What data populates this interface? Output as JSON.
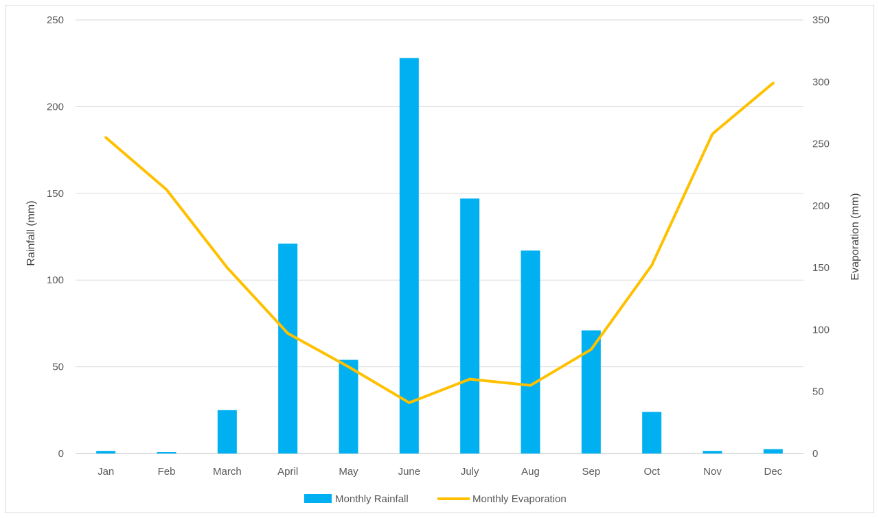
{
  "chart_data": {
    "type": "bar",
    "categories": [
      "Jan",
      "Feb",
      "March",
      "April",
      "May",
      "June",
      "July",
      "Aug",
      "Sep",
      "Oct",
      "Nov",
      "Dec"
    ],
    "series": [
      {
        "name": "Monthly Rainfall",
        "type": "bar",
        "axis": "left",
        "color": "#00b0f0",
        "values": [
          1.5,
          0.8,
          25,
          121,
          54,
          228,
          147,
          117,
          71,
          24,
          1.5,
          2.5
        ]
      },
      {
        "name": "Monthly Evaporation",
        "type": "line",
        "axis": "right",
        "color": "#ffc000",
        "values": [
          255,
          213,
          150,
          97,
          70,
          41,
          60,
          55,
          84,
          152,
          258,
          299
        ]
      }
    ],
    "ylabel": "Rainfall (mm)",
    "y2label": "Evaporation (mm)",
    "ylim": [
      0,
      250
    ],
    "yticks": [
      0,
      50,
      100,
      150,
      200,
      250
    ],
    "y2lim": [
      0,
      350
    ],
    "y2ticks": [
      0,
      50,
      100,
      150,
      200,
      250,
      300,
      350
    ],
    "grid": true,
    "legend": "bottom-center"
  }
}
